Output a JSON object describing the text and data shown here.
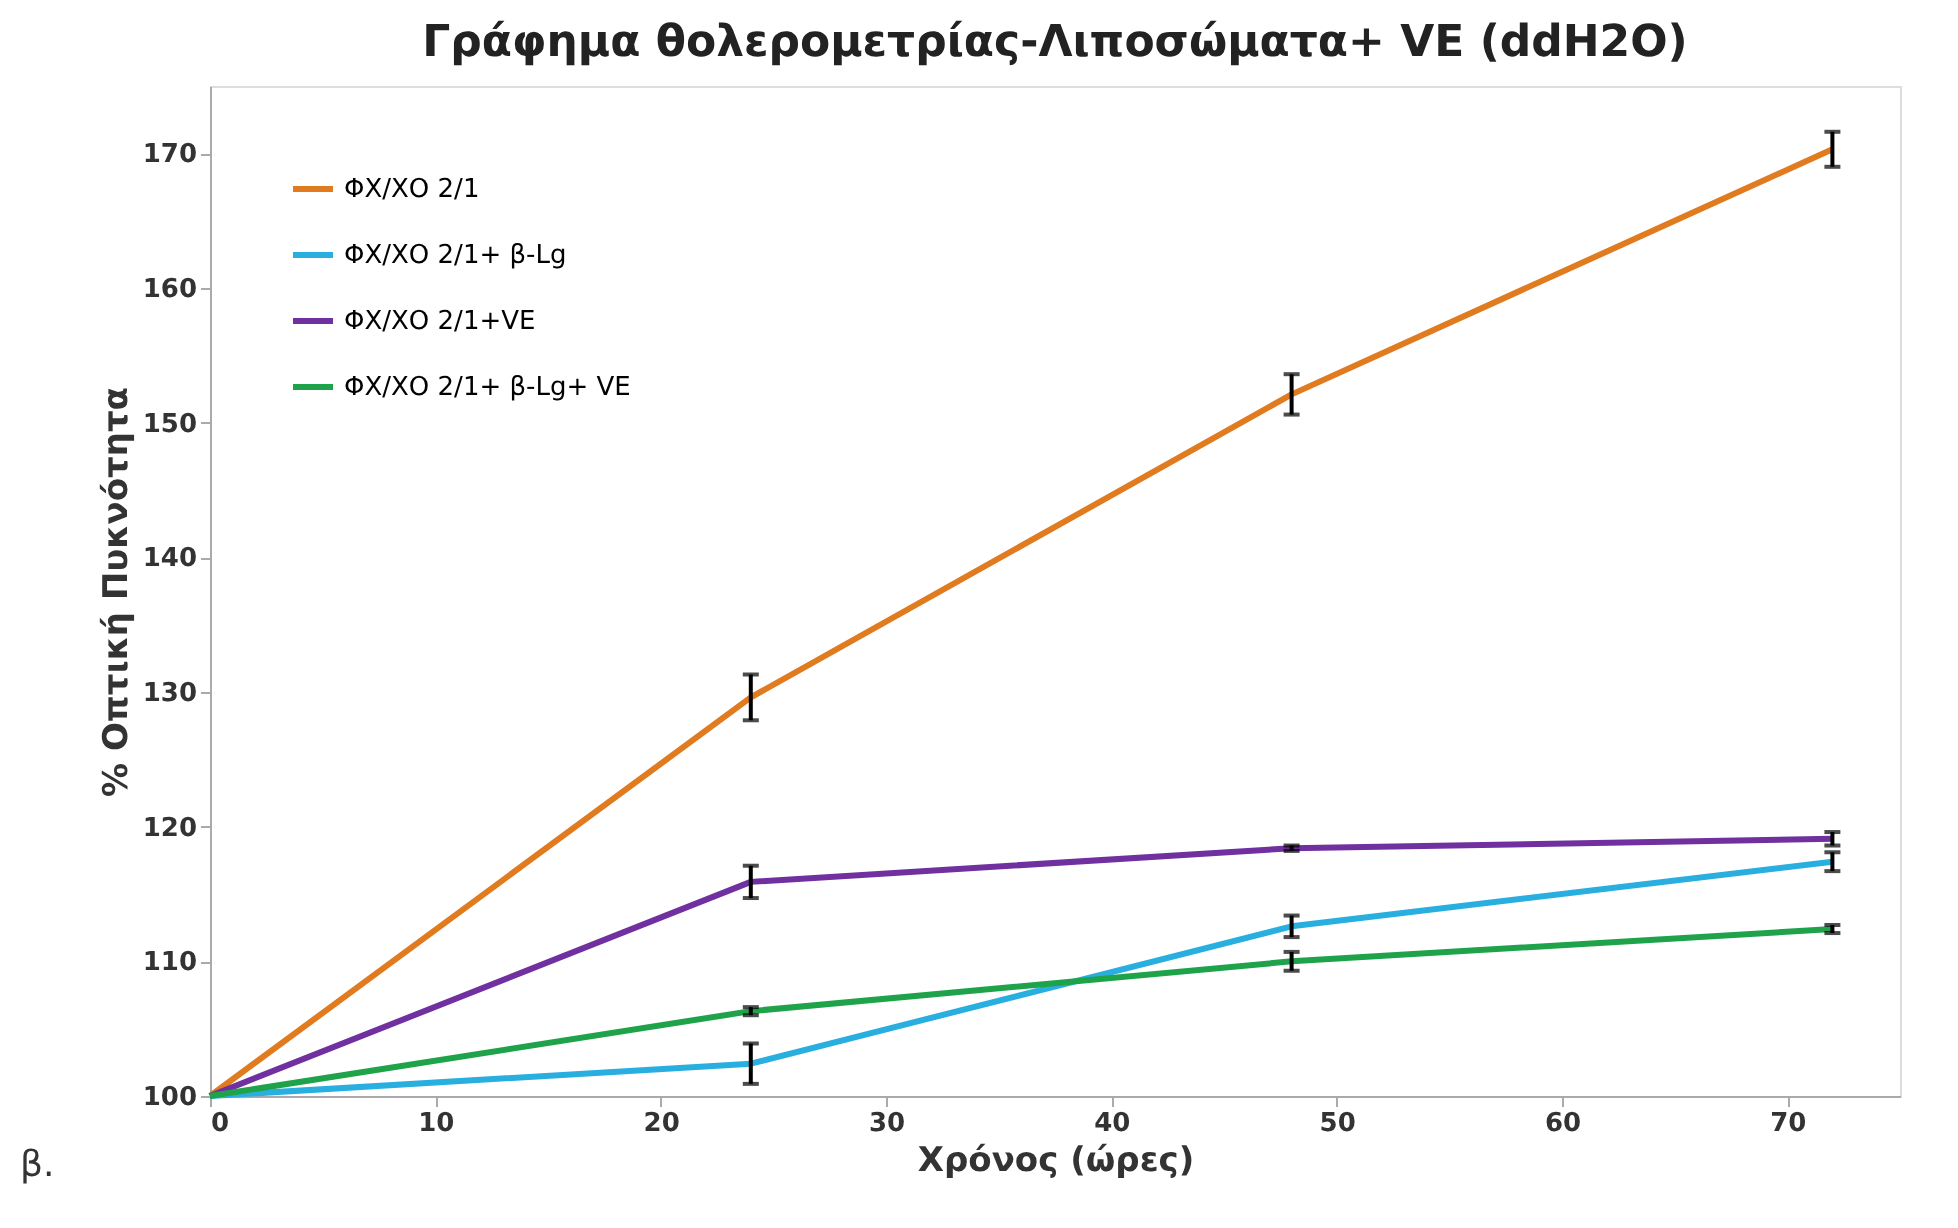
{
  "chart_data": {
    "type": "line",
    "title": "Γράφημα θολερομετρίας-Λιποσώματα+ VE (ddH2O)",
    "xlabel": "Χρόνος (ώρες)",
    "ylabel": "% Οπτική Πυκνότητα",
    "x": [
      0,
      24,
      48,
      72
    ],
    "series": [
      {
        "name": "ΦΧ/ΧΟ 2/1",
        "color": "#e07b1f",
        "values": [
          100,
          129.6,
          152.1,
          170.3
        ],
        "errors": [
          null,
          1.7,
          1.5,
          1.3
        ]
      },
      {
        "name": "ΦΧ/ΧΟ 2/1+ β-Lg",
        "color": "#29aee0",
        "values": [
          100,
          102.4,
          112.6,
          117.4
        ],
        "errors": [
          null,
          1.5,
          0.8,
          0.7
        ]
      },
      {
        "name": "ΦΧ/ΧΟ 2/1+VE",
        "color": "#7030a0",
        "values": [
          100,
          115.9,
          118.4,
          119.1
        ],
        "errors": [
          null,
          1.2,
          0.2,
          0.5
        ]
      },
      {
        "name": "ΦΧ/ΧΟ 2/1+ β-Lg+ VE",
        "color": "#1fa34a",
        "values": [
          100,
          106.3,
          110.0,
          112.4
        ],
        "errors": [
          null,
          0.3,
          0.7,
          0.3
        ]
      }
    ],
    "xlim": [
      0,
      75
    ],
    "xticks": [
      0,
      10,
      20,
      30,
      40,
      50,
      60,
      70
    ],
    "ylim": [
      100,
      175
    ],
    "yticks": [
      100,
      110,
      120,
      130,
      140,
      150,
      160,
      170
    ],
    "grid": false,
    "legend": "top left",
    "marker": "none",
    "line_style": "solid",
    "annotations": [
      "β."
    ]
  }
}
